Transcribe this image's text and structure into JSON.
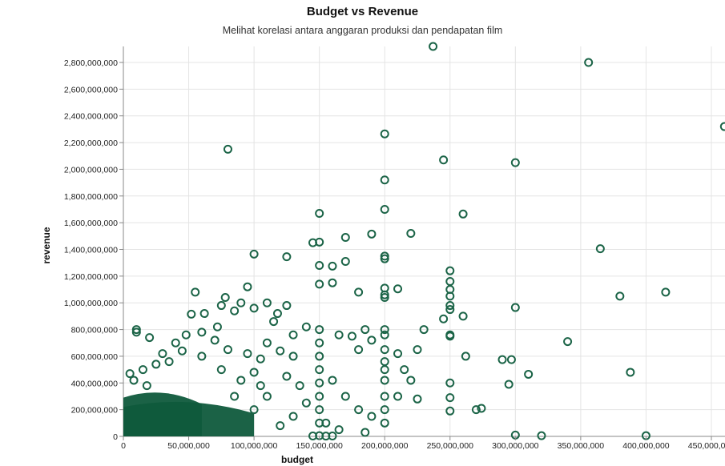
{
  "colors": {
    "point": "#1b6447",
    "dense": "#0f5a3c",
    "axis": "#888888",
    "grid": "#e4e4e4"
  },
  "chart_data": {
    "type": "scatter",
    "title": "Budget vs Revenue",
    "subtitle": "Melihat korelasi antara anggaran produksi dan pendapatan film",
    "xlabel": "budget",
    "ylabel": "revenue",
    "xlim": [
      0,
      460000000
    ],
    "ylim": [
      0,
      2900000000
    ],
    "x_ticks": [
      0,
      50000000,
      100000000,
      150000000,
      200000000,
      250000000,
      300000000,
      350000000,
      400000000,
      450000000
    ],
    "x_tick_labels": [
      "0",
      "50,000,000",
      "100,000,000",
      "150,000,000",
      "200,000,000",
      "250,000,000",
      "300,000,000",
      "350,000,000",
      "400,000,000",
      "450,000,000"
    ],
    "y_ticks": [
      0,
      200000000,
      400000000,
      600000000,
      800000000,
      1000000000,
      1200000000,
      1400000000,
      1600000000,
      1800000000,
      2000000000,
      2200000000,
      2400000000,
      2600000000,
      2800000000
    ],
    "y_tick_labels": [
      "0",
      "200,000,000",
      "400,000,000",
      "600,000,000",
      "800,000,000",
      "1,000,000,000",
      "1,200,000,000",
      "1,400,000,000",
      "1,600,000,000",
      "1,800,000,000",
      "2,000,000,000",
      "2,200,000,000",
      "2,400,000,000",
      "2,600,000,000",
      "2,800,000,000"
    ],
    "grid": true,
    "points": [
      [
        237000000,
        2920000000
      ],
      [
        356000000,
        2800000000
      ],
      [
        460000000,
        2320000000
      ],
      [
        200000000,
        2265000000
      ],
      [
        80000000,
        2150000000
      ],
      [
        245000000,
        2070000000
      ],
      [
        300000000,
        2050000000
      ],
      [
        200000000,
        1920000000
      ],
      [
        200000000,
        1700000000
      ],
      [
        150000000,
        1670000000
      ],
      [
        260000000,
        1665000000
      ],
      [
        190000000,
        1515000000
      ],
      [
        220000000,
        1520000000
      ],
      [
        170000000,
        1490000000
      ],
      [
        145000000,
        1450000000
      ],
      [
        150000000,
        1455000000
      ],
      [
        365000000,
        1405000000
      ],
      [
        100000000,
        1365000000
      ],
      [
        125000000,
        1345000000
      ],
      [
        200000000,
        1350000000
      ],
      [
        200000000,
        1330000000
      ],
      [
        170000000,
        1310000000
      ],
      [
        150000000,
        1280000000
      ],
      [
        160000000,
        1275000000
      ],
      [
        250000000,
        1240000000
      ],
      [
        250000000,
        1160000000
      ],
      [
        160000000,
        1150000000
      ],
      [
        150000000,
        1140000000
      ],
      [
        95000000,
        1120000000
      ],
      [
        200000000,
        1110000000
      ],
      [
        210000000,
        1105000000
      ],
      [
        55000000,
        1080000000
      ],
      [
        180000000,
        1080000000
      ],
      [
        380000000,
        1050000000
      ],
      [
        415000000,
        1080000000
      ],
      [
        200000000,
        1060000000
      ],
      [
        200000000,
        1040000000
      ],
      [
        250000000,
        1100000000
      ],
      [
        250000000,
        1050000000
      ],
      [
        78000000,
        1040000000
      ],
      [
        110000000,
        1000000000
      ],
      [
        75000000,
        980000000
      ],
      [
        90000000,
        1000000000
      ],
      [
        125000000,
        980000000
      ],
      [
        250000000,
        980000000
      ],
      [
        250000000,
        950000000
      ],
      [
        300000000,
        965000000
      ],
      [
        100000000,
        960000000
      ],
      [
        118000000,
        920000000
      ],
      [
        52000000,
        915000000
      ],
      [
        62000000,
        920000000
      ],
      [
        85000000,
        940000000
      ],
      [
        260000000,
        900000000
      ],
      [
        245000000,
        880000000
      ],
      [
        230000000,
        800000000
      ],
      [
        340000000,
        710000000
      ],
      [
        262000000,
        600000000
      ],
      [
        290000000,
        575000000
      ],
      [
        297000000,
        575000000
      ],
      [
        200000000,
        560000000
      ],
      [
        310000000,
        465000000
      ],
      [
        388000000,
        480000000
      ],
      [
        295000000,
        390000000
      ],
      [
        250000000,
        400000000
      ],
      [
        250000000,
        290000000
      ],
      [
        225000000,
        280000000
      ],
      [
        220000000,
        420000000
      ],
      [
        250000000,
        190000000
      ],
      [
        270000000,
        200000000
      ],
      [
        274000000,
        210000000
      ],
      [
        300000000,
        10000000
      ],
      [
        320000000,
        5000000
      ],
      [
        400000000,
        5000000
      ],
      [
        250000000,
        750000000
      ],
      [
        250000000,
        760000000
      ],
      [
        200000000,
        800000000
      ],
      [
        200000000,
        760000000
      ],
      [
        200000000,
        650000000
      ],
      [
        200000000,
        500000000
      ],
      [
        200000000,
        420000000
      ],
      [
        150000000,
        800000000
      ],
      [
        150000000,
        700000000
      ],
      [
        150000000,
        600000000
      ],
      [
        150000000,
        500000000
      ],
      [
        150000000,
        400000000
      ],
      [
        175000000,
        750000000
      ],
      [
        180000000,
        650000000
      ],
      [
        185000000,
        800000000
      ],
      [
        140000000,
        820000000
      ],
      [
        130000000,
        760000000
      ],
      [
        130000000,
        600000000
      ],
      [
        120000000,
        640000000
      ],
      [
        110000000,
        700000000
      ],
      [
        105000000,
        580000000
      ],
      [
        100000000,
        480000000
      ],
      [
        95000000,
        620000000
      ],
      [
        80000000,
        650000000
      ],
      [
        70000000,
        720000000
      ],
      [
        60000000,
        600000000
      ],
      [
        40000000,
        700000000
      ],
      [
        45000000,
        640000000
      ],
      [
        30000000,
        620000000
      ],
      [
        10000000,
        800000000
      ],
      [
        10000000,
        780000000
      ],
      [
        20000000,
        740000000
      ],
      [
        35000000,
        560000000
      ],
      [
        25000000,
        540000000
      ],
      [
        15000000,
        500000000
      ],
      [
        5000000,
        470000000
      ],
      [
        8000000,
        420000000
      ],
      [
        18000000,
        380000000
      ],
      [
        60000000,
        780000000
      ],
      [
        48000000,
        760000000
      ],
      [
        72000000,
        820000000
      ],
      [
        115000000,
        860000000
      ],
      [
        165000000,
        760000000
      ],
      [
        190000000,
        720000000
      ],
      [
        210000000,
        620000000
      ],
      [
        225000000,
        650000000
      ],
      [
        215000000,
        500000000
      ],
      [
        160000000,
        420000000
      ],
      [
        170000000,
        300000000
      ],
      [
        180000000,
        200000000
      ],
      [
        210000000,
        300000000
      ],
      [
        190000000,
        150000000
      ],
      [
        155000000,
        100000000
      ],
      [
        165000000,
        50000000
      ],
      [
        185000000,
        30000000
      ],
      [
        200000000,
        100000000
      ],
      [
        200000000,
        200000000
      ],
      [
        200000000,
        300000000
      ],
      [
        150000000,
        300000000
      ],
      [
        150000000,
        200000000
      ],
      [
        150000000,
        100000000
      ],
      [
        150000000,
        5000000
      ],
      [
        145000000,
        3000000
      ],
      [
        155000000,
        2000000
      ],
      [
        160000000,
        3000000
      ],
      [
        125000000,
        450000000
      ],
      [
        135000000,
        380000000
      ],
      [
        140000000,
        250000000
      ],
      [
        130000000,
        150000000
      ],
      [
        120000000,
        80000000
      ],
      [
        110000000,
        300000000
      ],
      [
        100000000,
        200000000
      ],
      [
        105000000,
        380000000
      ],
      [
        90000000,
        420000000
      ],
      [
        85000000,
        300000000
      ],
      [
        95000000,
        150000000
      ],
      [
        75000000,
        500000000
      ]
    ],
    "dense_regions": [
      {
        "x": [
          0,
          100000000
        ],
        "y": [
          0,
          280000000
        ]
      },
      {
        "x": [
          0,
          60000000
        ],
        "y": [
          0,
          350000000
        ]
      }
    ]
  }
}
